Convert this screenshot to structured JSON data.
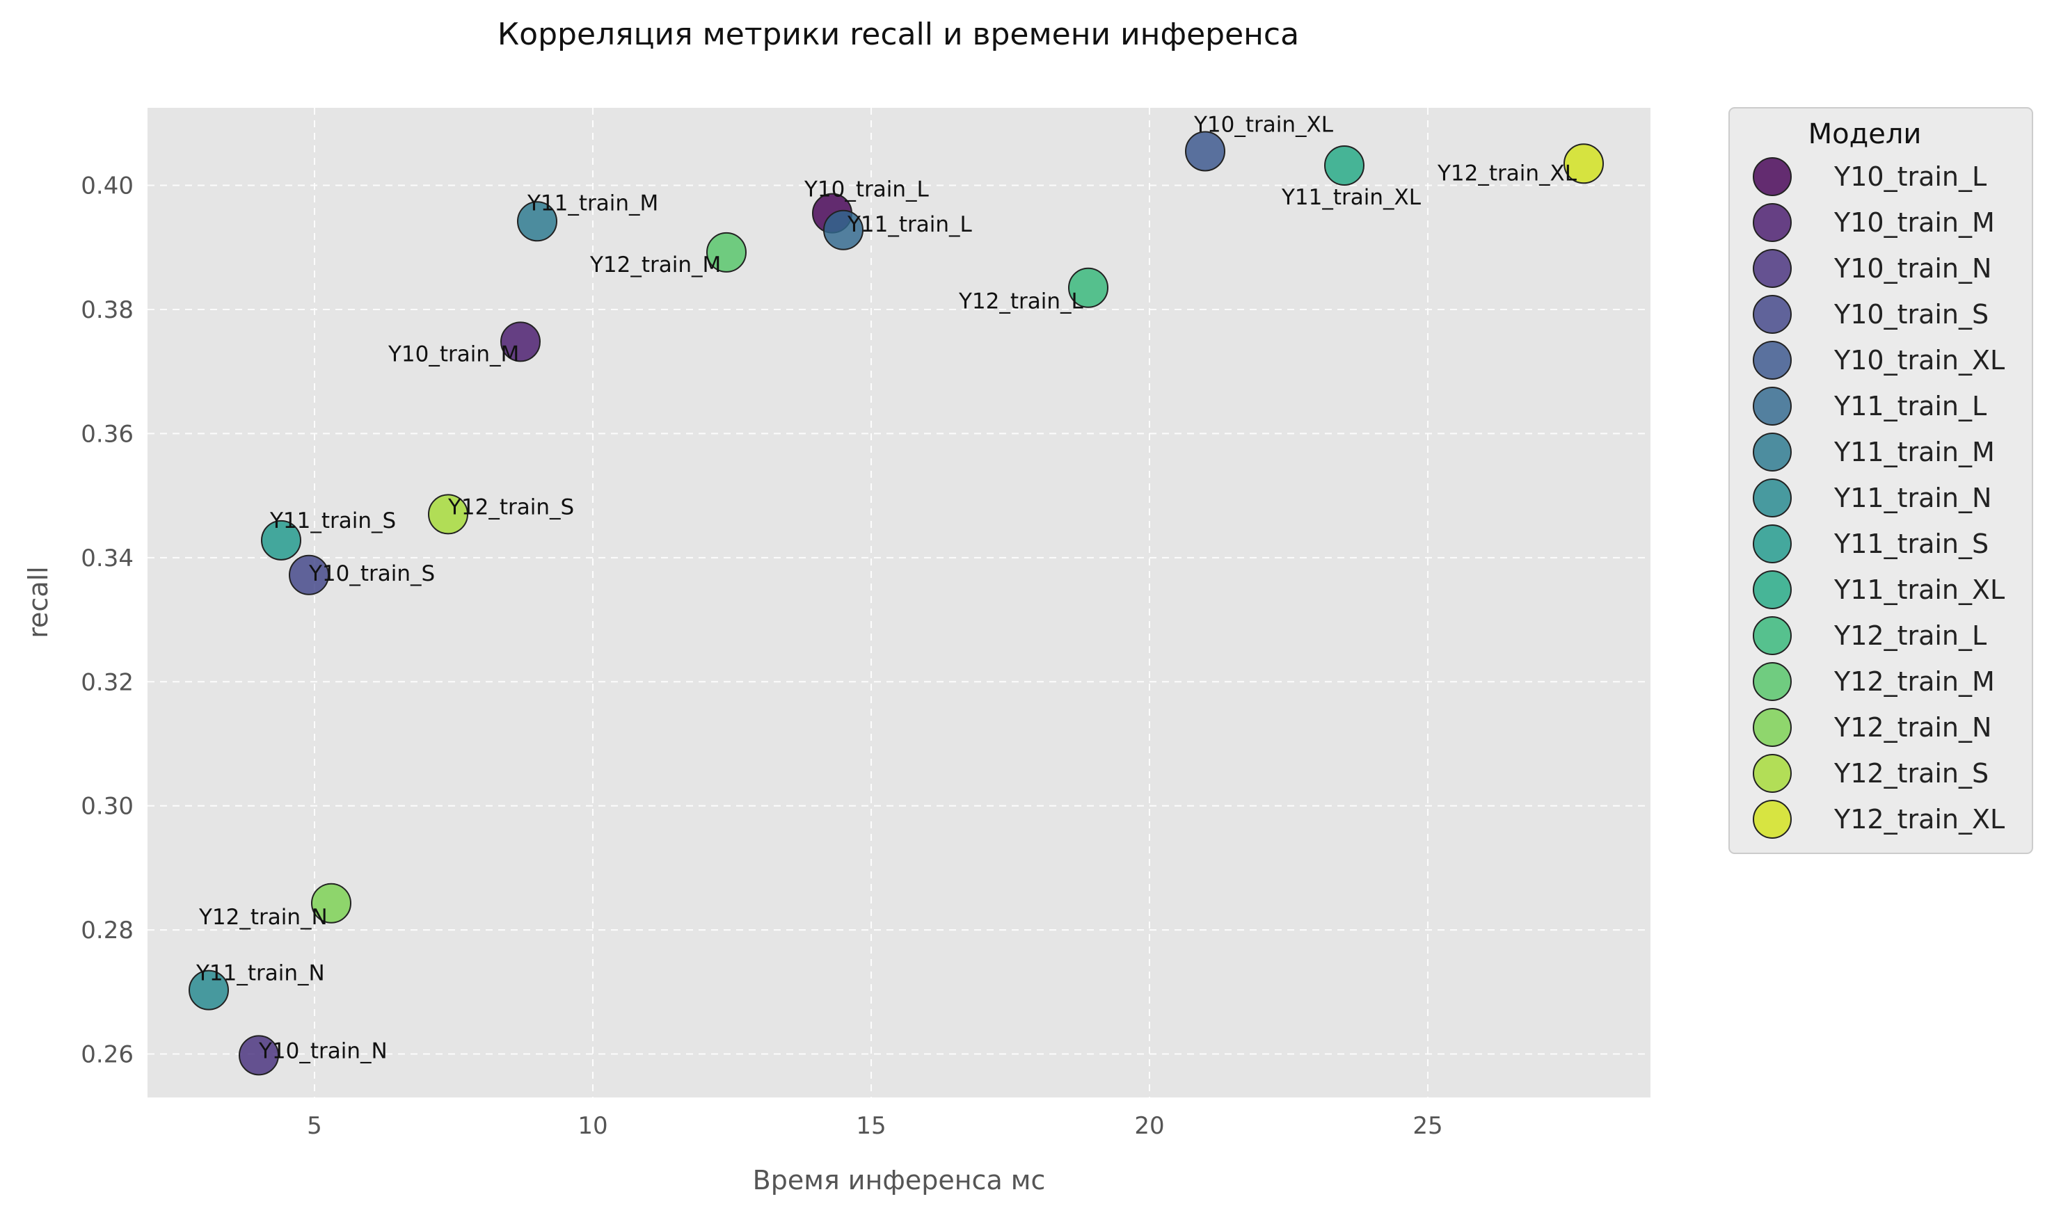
{
  "chart_data": {
    "type": "scatter",
    "title": "Корреляция метрики recall и времени инференса",
    "xlabel": "Время инференса мс",
    "ylabel": "recall",
    "xlim": [
      2,
      29
    ],
    "ylim": [
      0.253,
      0.4125
    ],
    "xticks": [
      5,
      10,
      15,
      20,
      25
    ],
    "xtick_labels": [
      "5",
      "10",
      "15",
      "20",
      "25"
    ],
    "yticks": [
      0.26,
      0.28,
      0.3,
      0.32,
      0.34,
      0.36,
      0.38,
      0.4
    ],
    "ytick_labels": [
      "0.26",
      "0.28",
      "0.30",
      "0.32",
      "0.34",
      "0.36",
      "0.38",
      "0.40"
    ],
    "grid": true,
    "legend_title": "Модели",
    "legend_position": "outside-right-top",
    "background_color": "#e5e5e5",
    "series": [
      {
        "name": "Y10_train_L",
        "x": 14.3,
        "y": 0.3955,
        "color": "#440154"
      },
      {
        "name": "Y10_train_M",
        "x": 8.7,
        "y": 0.3748,
        "color": "#481a6c"
      },
      {
        "name": "Y10_train_N",
        "x": 4.0,
        "y": 0.2598,
        "color": "#472f7d"
      },
      {
        "name": "Y10_train_S",
        "x": 4.9,
        "y": 0.3372,
        "color": "#414487"
      },
      {
        "name": "Y10_train_XL",
        "x": 21.0,
        "y": 0.4055,
        "color": "#39568c"
      },
      {
        "name": "Y11_train_L",
        "x": 14.5,
        "y": 0.3928,
        "color": "#31688e"
      },
      {
        "name": "Y11_train_M",
        "x": 9.0,
        "y": 0.3942,
        "color": "#2a788e"
      },
      {
        "name": "Y11_train_N",
        "x": 3.1,
        "y": 0.2703,
        "color": "#23888e"
      },
      {
        "name": "Y11_train_S",
        "x": 4.4,
        "y": 0.3428,
        "color": "#1f988b"
      },
      {
        "name": "Y11_train_XL",
        "x": 23.5,
        "y": 0.4032,
        "color": "#22a884"
      },
      {
        "name": "Y12_train_L",
        "x": 18.9,
        "y": 0.3835,
        "color": "#35b779"
      },
      {
        "name": "Y12_train_M",
        "x": 12.4,
        "y": 0.3892,
        "color": "#54c568"
      },
      {
        "name": "Y12_train_N",
        "x": 5.3,
        "y": 0.2843,
        "color": "#7ad151"
      },
      {
        "name": "Y12_train_S",
        "x": 7.4,
        "y": 0.347,
        "color": "#a5db36"
      },
      {
        "name": "Y12_train_XL",
        "x": 27.8,
        "y": 0.4035,
        "color": "#d2e21b"
      }
    ]
  }
}
